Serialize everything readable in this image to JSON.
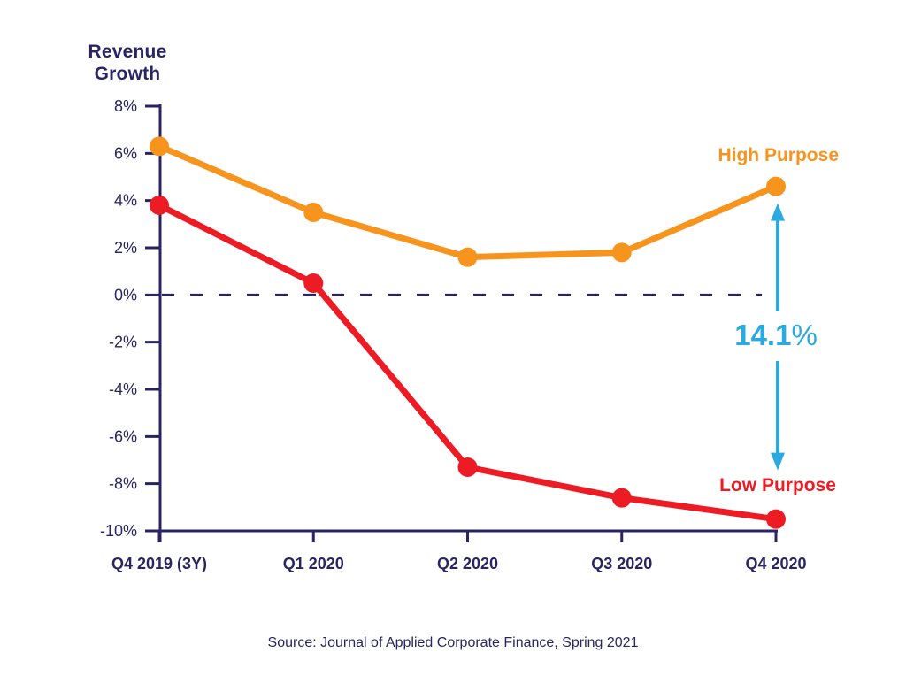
{
  "chart": {
    "title_lines": [
      "Revenue",
      "Growth"
    ],
    "source": "Source: Journal of Applied Corporate Finance, Spring 2021"
  },
  "series_labels": {
    "high": "High Purpose",
    "low": "Low Purpose"
  },
  "annotation": {
    "value": "14.1",
    "unit": "%"
  },
  "colors": {
    "navy": "#2a2562",
    "orange": "#f7941d",
    "red": "#ec1b24",
    "blue": "#29abe2",
    "background": "#ffffff"
  },
  "chart_data": {
    "type": "line",
    "title": "Revenue Growth",
    "xlabel": "",
    "ylabel": "Revenue Growth",
    "categories": [
      "Q4 2019 (3Y)",
      "Q1 2020",
      "Q2 2020",
      "Q3 2020",
      "Q4 2020"
    ],
    "series": [
      {
        "name": "High Purpose",
        "color_key": "orange",
        "values": [
          6.3,
          3.5,
          1.6,
          1.8,
          4.6
        ]
      },
      {
        "name": "Low Purpose",
        "color_key": "red",
        "values": [
          3.8,
          0.5,
          -7.3,
          -8.6,
          -9.5
        ]
      }
    ],
    "ylim": [
      -10,
      8
    ],
    "y_ticks": [
      8,
      6,
      4,
      2,
      0,
      -2,
      -4,
      -6,
      -8,
      -10
    ],
    "y_tick_labels": [
      "8%",
      "6%",
      "4%",
      "2%",
      "0%",
      "-2%",
      "-4%",
      "-6%",
      "-8%",
      "-10%"
    ],
    "zero_line": "dashed",
    "grid": false,
    "legend_position": "inline-right",
    "annotation": {
      "text": "14.1%",
      "at_category": "Q4 2020",
      "between": [
        "High Purpose",
        "Low Purpose"
      ],
      "style": "double-headed-vertical-arrow"
    }
  }
}
